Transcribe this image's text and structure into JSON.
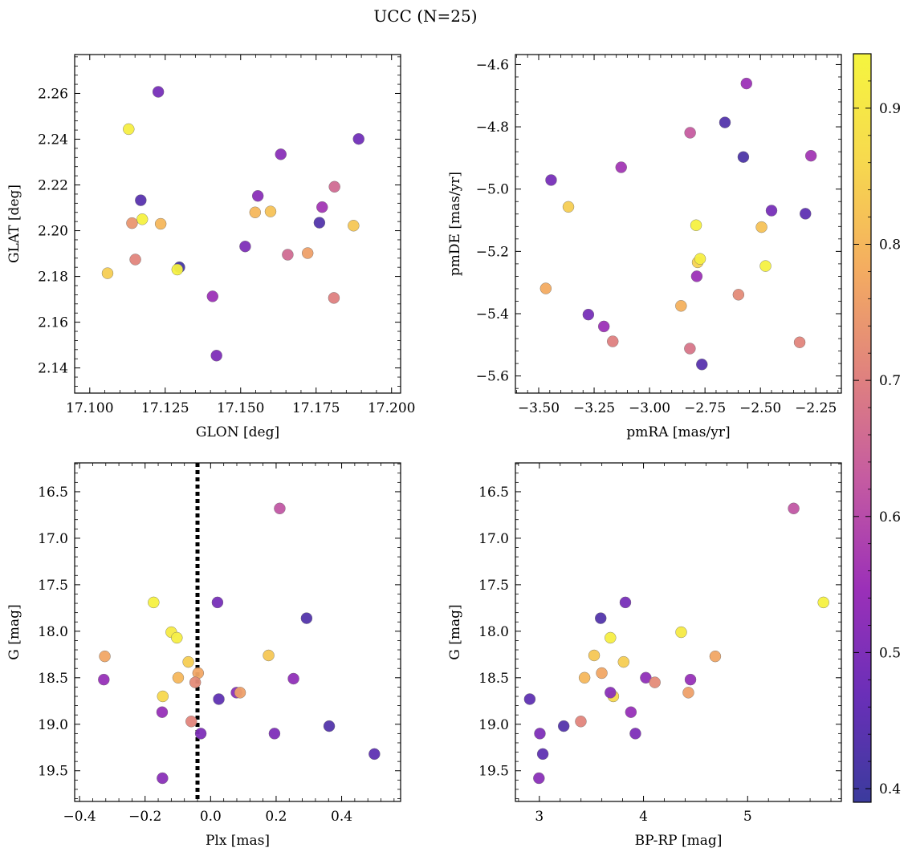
{
  "figure": {
    "title": "UCC (N=25)",
    "colorbar": {
      "range": [
        0.39,
        0.94
      ],
      "ticks": [
        0.4,
        0.5,
        0.6,
        0.7,
        0.8,
        0.9
      ],
      "colormap": "plasma-like",
      "colors": [
        "#3b3b9d",
        "#6a2fb8",
        "#9b30b8",
        "#c45aa2",
        "#e0827e",
        "#f4ad60",
        "#f7d94e",
        "#f5f53f"
      ]
    }
  },
  "chart_data": [
    {
      "type": "scatter",
      "xlabel": "GLON [deg]",
      "ylabel": "GLAT [deg]",
      "xlim": [
        17.095,
        17.203
      ],
      "ylim": [
        2.129,
        2.277
      ],
      "xticks": [
        17.1,
        17.125,
        17.15,
        17.175,
        17.2
      ],
      "xtick_labels": [
        "17.100",
        "17.125",
        "17.150",
        "17.175",
        "17.200"
      ],
      "yticks": [
        2.14,
        2.16,
        2.18,
        2.2,
        2.22,
        2.24,
        2.26
      ],
      "ytick_labels": [
        "2.14",
        "2.16",
        "2.18",
        "2.20",
        "2.22",
        "2.24",
        "2.26"
      ],
      "points": [
        {
          "x": 17.1227,
          "y": 2.2607,
          "c": 0.49
        },
        {
          "x": 17.1129,
          "y": 2.2444,
          "c": 0.92
        },
        {
          "x": 17.1169,
          "y": 2.2133,
          "c": 0.44
        },
        {
          "x": 17.1174,
          "y": 2.205,
          "c": 0.93
        },
        {
          "x": 17.114,
          "y": 2.2033,
          "c": 0.74
        },
        {
          "x": 17.1235,
          "y": 2.203,
          "c": 0.8
        },
        {
          "x": 17.1151,
          "y": 2.1874,
          "c": 0.71
        },
        {
          "x": 17.1059,
          "y": 2.1814,
          "c": 0.84
        },
        {
          "x": 17.1297,
          "y": 2.184,
          "c": 0.41
        },
        {
          "x": 17.129,
          "y": 2.183,
          "c": 0.93
        },
        {
          "x": 17.1407,
          "y": 2.1713,
          "c": 0.55
        },
        {
          "x": 17.142,
          "y": 2.1454,
          "c": 0.5
        },
        {
          "x": 17.1515,
          "y": 2.1931,
          "c": 0.5
        },
        {
          "x": 17.1557,
          "y": 2.2152,
          "c": 0.52
        },
        {
          "x": 17.1633,
          "y": 2.2334,
          "c": 0.52
        },
        {
          "x": 17.1548,
          "y": 2.208,
          "c": 0.8
        },
        {
          "x": 17.1599,
          "y": 2.2084,
          "c": 0.82
        },
        {
          "x": 17.1656,
          "y": 2.1895,
          "c": 0.66
        },
        {
          "x": 17.1722,
          "y": 2.1902,
          "c": 0.76
        },
        {
          "x": 17.1761,
          "y": 2.2035,
          "c": 0.43
        },
        {
          "x": 17.177,
          "y": 2.2103,
          "c": 0.56
        },
        {
          "x": 17.1811,
          "y": 2.2192,
          "c": 0.66
        },
        {
          "x": 17.1809,
          "y": 2.1706,
          "c": 0.7
        },
        {
          "x": 17.1874,
          "y": 2.2022,
          "c": 0.83
        },
        {
          "x": 17.1891,
          "y": 2.2401,
          "c": 0.48
        }
      ]
    },
    {
      "type": "scatter",
      "xlabel": "pmRA [mas/yr]",
      "ylabel": "pmDE [mas/yr]",
      "xlim": [
        -3.605,
        -2.135
      ],
      "ylim": [
        -5.655,
        -4.568
      ],
      "xticks": [
        -3.5,
        -3.25,
        -3.0,
        -2.75,
        -2.5,
        -2.25
      ],
      "xtick_labels": [
        "−3.50",
        "−3.25",
        "−3.00",
        "−2.75",
        "−2.50",
        "−2.25"
      ],
      "yticks": [
        -5.6,
        -5.4,
        -5.2,
        -5.0,
        -4.8,
        -4.6
      ],
      "ytick_labels": [
        "−5.6",
        "−5.4",
        "−5.2",
        "−5.0",
        "−4.8",
        "−4.6"
      ],
      "points": [
        {
          "x": -2.563,
          "y": -4.661,
          "c": 0.55
        },
        {
          "x": -2.66,
          "y": -4.786,
          "c": 0.43
        },
        {
          "x": -2.577,
          "y": -4.897,
          "c": 0.42
        },
        {
          "x": -2.817,
          "y": -4.819,
          "c": 0.63
        },
        {
          "x": -3.128,
          "y": -4.93,
          "c": 0.56
        },
        {
          "x": -3.444,
          "y": -4.971,
          "c": 0.49
        },
        {
          "x": -2.272,
          "y": -4.893,
          "c": 0.56
        },
        {
          "x": -3.366,
          "y": -5.057,
          "c": 0.84
        },
        {
          "x": -2.79,
          "y": -5.116,
          "c": 0.93
        },
        {
          "x": -2.495,
          "y": -5.122,
          "c": 0.82
        },
        {
          "x": -2.45,
          "y": -5.069,
          "c": 0.49
        },
        {
          "x": -2.297,
          "y": -5.079,
          "c": 0.45
        },
        {
          "x": -2.783,
          "y": -5.235,
          "c": 0.85
        },
        {
          "x": -2.772,
          "y": -5.224,
          "c": 0.92
        },
        {
          "x": -2.477,
          "y": -5.247,
          "c": 0.93
        },
        {
          "x": -3.468,
          "y": -5.319,
          "c": 0.78
        },
        {
          "x": -2.787,
          "y": -5.28,
          "c": 0.55
        },
        {
          "x": -2.599,
          "y": -5.339,
          "c": 0.72
        },
        {
          "x": -2.858,
          "y": -5.375,
          "c": 0.79
        },
        {
          "x": -3.276,
          "y": -5.403,
          "c": 0.49
        },
        {
          "x": -3.206,
          "y": -5.441,
          "c": 0.55
        },
        {
          "x": -3.166,
          "y": -5.489,
          "c": 0.7
        },
        {
          "x": -2.818,
          "y": -5.512,
          "c": 0.68
        },
        {
          "x": -2.323,
          "y": -5.492,
          "c": 0.71
        },
        {
          "x": -2.764,
          "y": -5.563,
          "c": 0.44
        }
      ]
    },
    {
      "type": "scatter",
      "xlabel": "Plx [mas]",
      "ylabel": "G [mag]",
      "xlim": [
        -0.415,
        0.58
      ],
      "ylim": [
        19.83,
        16.19
      ],
      "y_inverted": true,
      "xticks": [
        -0.4,
        -0.2,
        0.0,
        0.2,
        0.4
      ],
      "xtick_labels": [
        "−0.4",
        "−0.2",
        "0.0",
        "0.2",
        "0.4"
      ],
      "yticks": [
        16.5,
        17.0,
        17.5,
        18.0,
        18.5,
        19.0,
        19.5
      ],
      "ytick_labels": [
        "16.5",
        "17.0",
        "17.5",
        "18.0",
        "18.5",
        "19.0",
        "19.5"
      ],
      "vline": {
        "x": -0.04,
        "style": "dotted"
      },
      "points": [
        {
          "x": 0.211,
          "y": 16.68,
          "c": 0.62
        },
        {
          "x": -0.174,
          "y": 17.69,
          "c": 0.93
        },
        {
          "x": 0.021,
          "y": 17.69,
          "c": 0.49
        },
        {
          "x": 0.293,
          "y": 17.86,
          "c": 0.43
        },
        {
          "x": -0.12,
          "y": 18.01,
          "c": 0.91
        },
        {
          "x": -0.103,
          "y": 18.07,
          "c": 0.92
        },
        {
          "x": -0.323,
          "y": 18.27,
          "c": 0.77
        },
        {
          "x": 0.177,
          "y": 18.26,
          "c": 0.83
        },
        {
          "x": -0.068,
          "y": 18.33,
          "c": 0.84
        },
        {
          "x": -0.038,
          "y": 18.45,
          "c": 0.77
        },
        {
          "x": -0.099,
          "y": 18.5,
          "c": 0.8
        },
        {
          "x": 0.253,
          "y": 18.51,
          "c": 0.53
        },
        {
          "x": -0.326,
          "y": 18.52,
          "c": 0.54
        },
        {
          "x": -0.047,
          "y": 18.55,
          "c": 0.72
        },
        {
          "x": -0.146,
          "y": 18.7,
          "c": 0.86
        },
        {
          "x": 0.079,
          "y": 18.66,
          "c": 0.52
        },
        {
          "x": 0.09,
          "y": 18.66,
          "c": 0.76
        },
        {
          "x": 0.025,
          "y": 18.73,
          "c": 0.45
        },
        {
          "x": -0.148,
          "y": 18.87,
          "c": 0.54
        },
        {
          "x": -0.059,
          "y": 18.97,
          "c": 0.71
        },
        {
          "x": 0.362,
          "y": 19.02,
          "c": 0.43
        },
        {
          "x": -0.03,
          "y": 19.1,
          "c": 0.5
        },
        {
          "x": 0.195,
          "y": 19.1,
          "c": 0.5
        },
        {
          "x": 0.5,
          "y": 19.32,
          "c": 0.45
        },
        {
          "x": -0.147,
          "y": 19.58,
          "c": 0.52
        }
      ]
    },
    {
      "type": "scatter",
      "xlabel": "BP-RP [mag]",
      "ylabel": "G [mag]",
      "xlim": [
        2.77,
        5.9
      ],
      "ylim": [
        19.83,
        16.19
      ],
      "y_inverted": true,
      "xticks": [
        3,
        4,
        5
      ],
      "xtick_labels": [
        "3",
        "4",
        "5"
      ],
      "yticks": [
        16.5,
        17.0,
        17.5,
        18.0,
        18.5,
        19.0,
        19.5
      ],
      "ytick_labels": [
        "16.5",
        "17.0",
        "17.5",
        "18.0",
        "18.5",
        "19.0",
        "19.5"
      ],
      "points": [
        {
          "x": 5.442,
          "y": 16.68,
          "c": 0.62
        },
        {
          "x": 5.728,
          "y": 17.69,
          "c": 0.93
        },
        {
          "x": 3.826,
          "y": 17.69,
          "c": 0.49
        },
        {
          "x": 3.589,
          "y": 17.86,
          "c": 0.43
        },
        {
          "x": 4.362,
          "y": 18.01,
          "c": 0.91
        },
        {
          "x": 3.682,
          "y": 18.07,
          "c": 0.92
        },
        {
          "x": 4.689,
          "y": 18.27,
          "c": 0.77
        },
        {
          "x": 3.526,
          "y": 18.26,
          "c": 0.83
        },
        {
          "x": 3.809,
          "y": 18.33,
          "c": 0.84
        },
        {
          "x": 3.599,
          "y": 18.45,
          "c": 0.77
        },
        {
          "x": 3.434,
          "y": 18.5,
          "c": 0.8
        },
        {
          "x": 4.022,
          "y": 18.5,
          "c": 0.53
        },
        {
          "x": 4.451,
          "y": 18.52,
          "c": 0.54
        },
        {
          "x": 4.109,
          "y": 18.55,
          "c": 0.72
        },
        {
          "x": 3.71,
          "y": 18.7,
          "c": 0.86
        },
        {
          "x": 3.682,
          "y": 18.66,
          "c": 0.52
        },
        {
          "x": 4.431,
          "y": 18.66,
          "c": 0.76
        },
        {
          "x": 2.908,
          "y": 18.73,
          "c": 0.45
        },
        {
          "x": 3.879,
          "y": 18.87,
          "c": 0.54
        },
        {
          "x": 3.398,
          "y": 18.97,
          "c": 0.71
        },
        {
          "x": 3.234,
          "y": 19.02,
          "c": 0.43
        },
        {
          "x": 3.005,
          "y": 19.1,
          "c": 0.5
        },
        {
          "x": 3.922,
          "y": 19.1,
          "c": 0.5
        },
        {
          "x": 3.033,
          "y": 19.32,
          "c": 0.45
        },
        {
          "x": 2.996,
          "y": 19.58,
          "c": 0.52
        }
      ]
    }
  ]
}
